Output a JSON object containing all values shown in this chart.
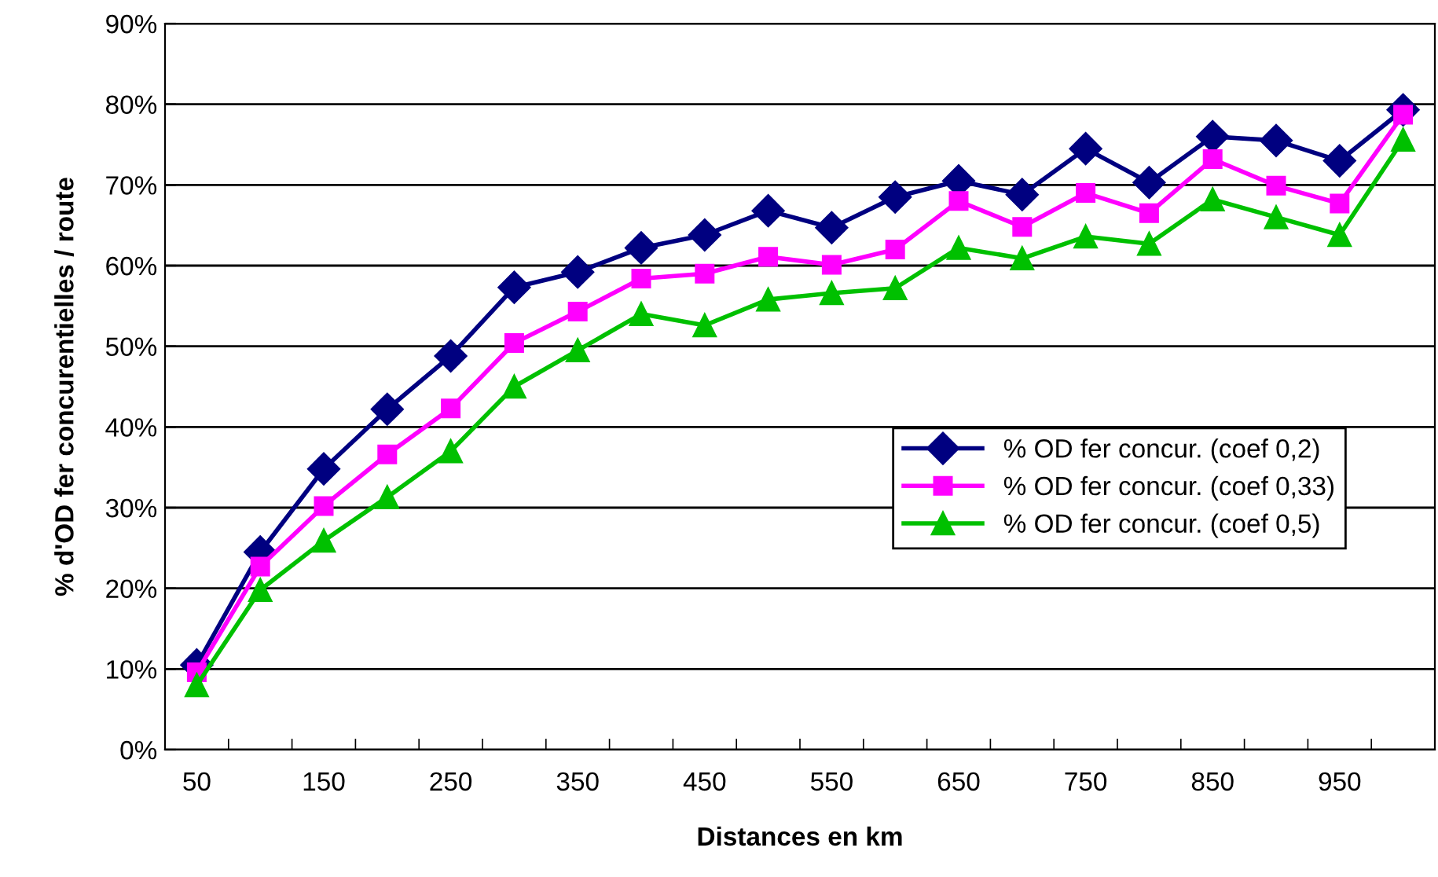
{
  "chart_data": {
    "type": "line",
    "xlabel": "Distances en km",
    "ylabel": "% d'OD fer concurentielles / route",
    "categories": [
      "50",
      null,
      "150",
      null,
      "250",
      null,
      "350",
      null,
      "450",
      null,
      "550",
      null,
      "650",
      null,
      "750",
      null,
      "850",
      null,
      "950",
      null
    ],
    "series": [
      {
        "name": "% OD fer concur. (coef 0,2)",
        "color": "#000080",
        "marker": "diamond",
        "values": [
          10.5,
          24.5,
          34.8,
          42.2,
          48.8,
          57.3,
          59.2,
          62.2,
          63.8,
          66.8,
          64.7,
          68.5,
          70.5,
          68.8,
          74.5,
          70.3,
          76,
          75.5,
          73,
          79.3
        ]
      },
      {
        "name": "% OD fer concur. (coef 0,33)",
        "color": "#ff00ff",
        "marker": "square",
        "values": [
          9.6,
          22.7,
          30.2,
          36.6,
          42.3,
          50.4,
          54.3,
          58.4,
          59,
          61.1,
          60.1,
          62,
          68,
          64.8,
          69,
          66.5,
          73.2,
          69.9,
          67.7,
          78.7
        ]
      },
      {
        "name": "% OD fer concur. (coef 0,5)",
        "color": "#00c000",
        "marker": "triangle",
        "values": [
          8,
          19.8,
          25.9,
          31.3,
          37,
          45,
          49.5,
          54,
          52.6,
          55.8,
          56.6,
          57.2,
          62.2,
          60.9,
          63.6,
          62.7,
          68.2,
          66,
          63.8,
          75.6
        ]
      }
    ],
    "ylim": [
      0,
      90
    ],
    "yticks": [
      {
        "value": 0,
        "label": "0%"
      },
      {
        "value": 10,
        "label": "10%"
      },
      {
        "value": 20,
        "label": "20%"
      },
      {
        "value": 30,
        "label": "30%"
      },
      {
        "value": 40,
        "label": "40%"
      },
      {
        "value": 50,
        "label": "50%"
      },
      {
        "value": 60,
        "label": "60%"
      },
      {
        "value": 70,
        "label": "70%"
      },
      {
        "value": 80,
        "label": "80%"
      },
      {
        "value": 90,
        "label": "90%"
      }
    ],
    "grid": "y",
    "legend": "right",
    "line_style": "solid"
  }
}
